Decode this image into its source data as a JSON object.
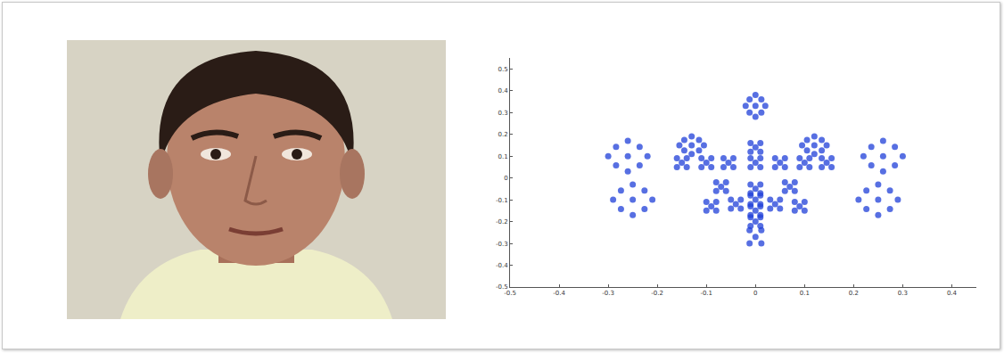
{
  "chart_data": {
    "type": "scatter",
    "color": "#1f3fd8",
    "marker": "circle",
    "grid": false,
    "xlim": [
      -0.5,
      0.45
    ],
    "xticks": [
      -0.5,
      -0.4,
      -0.3,
      -0.2,
      -0.1,
      0,
      0.1,
      0.2,
      0.3,
      0.4
    ],
    "ylim": [
      -0.5,
      0.55
    ],
    "yticks": [
      -0.5,
      -0.4,
      -0.3,
      -0.2,
      -0.1,
      0,
      0.1,
      0.2,
      0.3,
      0.4,
      0.5
    ],
    "x": [
      0,
      -0.02,
      0.02,
      0,
      0,
      -0.012,
      0.012,
      -0.012,
      0.012,
      -0.26,
      -0.3,
      -0.22,
      -0.26,
      -0.26,
      -0.284,
      -0.236,
      -0.284,
      -0.236,
      0.26,
      0.22,
      0.3,
      0.26,
      0.26,
      0.236,
      0.284,
      0.236,
      0.284,
      -0.25,
      -0.29,
      -0.21,
      -0.25,
      -0.25,
      -0.274,
      -0.226,
      -0.274,
      -0.226,
      0.25,
      0.21,
      0.29,
      0.25,
      0.25,
      0.226,
      0.274,
      0.226,
      0.274,
      -0.13,
      -0.155,
      -0.105,
      -0.13,
      -0.13,
      -0.145,
      -0.115,
      -0.145,
      -0.115,
      0.12,
      0.095,
      0.145,
      0.12,
      0.12,
      0.105,
      0.135,
      0.105,
      0.135,
      0,
      -0.01,
      0.01,
      -0.01,
      0.01,
      -0.15,
      -0.16,
      -0.14,
      -0.16,
      -0.14,
      -0.1,
      -0.11,
      -0.09,
      -0.11,
      -0.09,
      -0.055,
      -0.065,
      -0.045,
      -0.065,
      -0.045,
      0,
      -0.01,
      0.01,
      -0.01,
      0.01,
      0.05,
      0.04,
      0.06,
      0.04,
      0.06,
      0.1,
      0.09,
      0.11,
      0.09,
      0.11,
      0.145,
      0.135,
      0.155,
      0.135,
      0.155,
      -0.07,
      -0.08,
      -0.06,
      -0.08,
      -0.06,
      0.07,
      0.06,
      0.08,
      0.06,
      0.08,
      0,
      -0.01,
      0.01,
      -0.01,
      0.01,
      -0.09,
      -0.1,
      -0.08,
      -0.1,
      -0.08,
      0.09,
      0.08,
      0.1,
      0.08,
      0.1,
      -0.04,
      -0.05,
      -0.03,
      -0.05,
      -0.03,
      0.04,
      0.03,
      0.05,
      0.03,
      0.05,
      0,
      -0.01,
      0.01,
      -0.01,
      0.01,
      0,
      -0.01,
      0.01,
      -0.01,
      0.01,
      0,
      -0.01,
      0.01,
      -0.01,
      0.01,
      0,
      -0.012,
      0.012,
      -0.012,
      0.012
    ],
    "values": [
      0.33,
      0.33,
      0.33,
      0.28,
      0.38,
      0.36,
      0.36,
      0.3,
      0.3,
      0.1,
      0.1,
      0.1,
      0.03,
      0.17,
      0.142,
      0.142,
      0.058,
      0.058,
      0.1,
      0.1,
      0.1,
      0.03,
      0.17,
      0.142,
      0.142,
      0.058,
      0.058,
      -0.1,
      -0.1,
      -0.1,
      -0.17,
      -0.03,
      -0.058,
      -0.058,
      -0.142,
      -0.142,
      -0.1,
      -0.1,
      -0.1,
      -0.17,
      -0.03,
      -0.058,
      -0.058,
      -0.142,
      -0.142,
      0.15,
      0.15,
      0.15,
      0.11,
      0.19,
      0.174,
      0.174,
      0.126,
      0.126,
      0.15,
      0.15,
      0.15,
      0.11,
      0.19,
      0.174,
      0.174,
      0.126,
      0.126,
      0.14,
      0.12,
      0.12,
      0.16,
      0.16,
      0.07,
      0.05,
      0.05,
      0.09,
      0.09,
      0.07,
      0.05,
      0.05,
      0.09,
      0.09,
      0.07,
      0.05,
      0.05,
      0.09,
      0.09,
      0.07,
      0.05,
      0.05,
      0.09,
      0.09,
      0.07,
      0.05,
      0.05,
      0.09,
      0.09,
      0.07,
      0.05,
      0.05,
      0.09,
      0.09,
      0.07,
      0.05,
      0.05,
      0.09,
      0.09,
      -0.04,
      -0.06,
      -0.06,
      -0.02,
      -0.02,
      -0.04,
      -0.06,
      -0.06,
      -0.02,
      -0.02,
      -0.05,
      -0.07,
      -0.07,
      -0.03,
      -0.03,
      -0.13,
      -0.15,
      -0.15,
      -0.11,
      -0.11,
      -0.13,
      -0.15,
      -0.15,
      -0.11,
      -0.11,
      -0.12,
      -0.14,
      -0.14,
      -0.1,
      -0.1,
      -0.12,
      -0.14,
      -0.14,
      -0.1,
      -0.1,
      -0.1,
      -0.12,
      -0.12,
      -0.08,
      -0.08,
      -0.15,
      -0.17,
      -0.17,
      -0.13,
      -0.13,
      -0.2,
      -0.22,
      -0.22,
      -0.18,
      -0.18,
      -0.27,
      -0.3,
      -0.3,
      -0.24,
      -0.24
    ]
  }
}
